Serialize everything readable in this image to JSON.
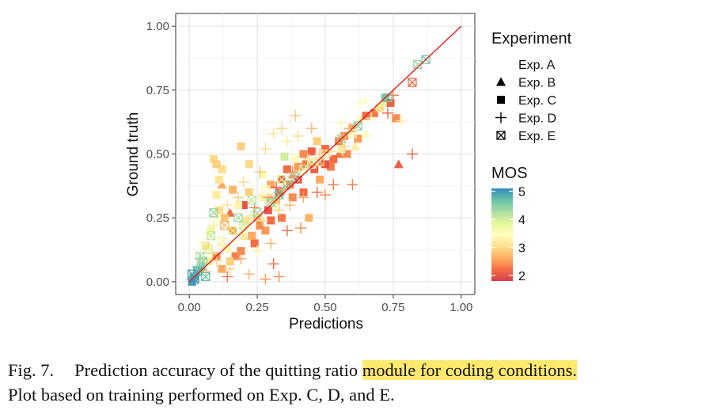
{
  "chart_data": {
    "type": "scatter",
    "xlabel": "Predictions",
    "ylabel": "Ground truth",
    "xlim": [
      -0.05,
      1.05
    ],
    "ylim": [
      -0.05,
      1.05
    ],
    "x_ticks": [
      "0.00",
      "0.25",
      "0.50",
      "0.75",
      "1.00"
    ],
    "y_ticks": [
      "0.00",
      "0.25",
      "0.50",
      "0.75",
      "1.00"
    ],
    "tick_values": [
      0,
      0.25,
      0.5,
      0.75,
      1
    ],
    "grid": true,
    "reference_line": {
      "from": [
        0,
        0
      ],
      "to": [
        1,
        1
      ],
      "color": "#e41a1c"
    },
    "legend_shape_title": "Experiment",
    "legend_shape_items": [
      {
        "label": "Exp. A",
        "shape": "none"
      },
      {
        "label": "Exp. B",
        "shape": "triangle"
      },
      {
        "label": "Exp. C",
        "shape": "square"
      },
      {
        "label": "Exp. D",
        "shape": "plus"
      },
      {
        "label": "Exp. E",
        "shape": "square-x"
      }
    ],
    "legend_color_title": "MOS",
    "legend_color_ticks": [
      "5",
      "4",
      "3",
      "2"
    ],
    "legend_color_tick_values": [
      5,
      4,
      3,
      2
    ],
    "colorbar_range": [
      1.8,
      5.1
    ],
    "colorbar_colors": [
      "#d53e4f",
      "#f46d43",
      "#fdae61",
      "#fee08b",
      "#ffffbf",
      "#e6f598",
      "#abdda4",
      "#66c2a5",
      "#3288bd"
    ],
    "series": [
      {
        "name": "Exp. B",
        "shape": "triangle",
        "points": [
          [
            0.77,
            0.46,
            2.1
          ],
          [
            0.61,
            0.53,
            3.2
          ],
          [
            0.55,
            0.5,
            2.3
          ],
          [
            0.49,
            0.47,
            2.2
          ],
          [
            0.12,
            0.38,
            2.6
          ],
          [
            0.15,
            0.27,
            2.2
          ],
          [
            0.3,
            0.33,
            2.9
          ],
          [
            0.45,
            0.46,
            2.5
          ],
          [
            0.71,
            0.7,
            3.8
          ],
          [
            0.65,
            0.58,
            3.5
          ],
          [
            0.05,
            0.06,
            4.6
          ],
          [
            0.2,
            0.18,
            3.1
          ],
          [
            0.38,
            0.42,
            2.4
          ]
        ]
      },
      {
        "name": "Exp. C",
        "shape": "square",
        "points": [
          [
            0.19,
            0.53,
            2.9
          ],
          [
            0.09,
            0.48,
            3.0
          ],
          [
            0.22,
            0.46,
            3.0
          ],
          [
            0.42,
            0.5,
            2.4
          ],
          [
            0.4,
            0.45,
            2.5
          ],
          [
            0.45,
            0.51,
            2.1
          ],
          [
            0.5,
            0.52,
            2.2
          ],
          [
            0.55,
            0.55,
            2.3
          ],
          [
            0.6,
            0.6,
            2.6
          ],
          [
            0.63,
            0.63,
            3.4
          ],
          [
            0.65,
            0.65,
            2.2
          ],
          [
            0.72,
            0.72,
            4.6
          ],
          [
            0.74,
            0.7,
            2.1
          ],
          [
            0.76,
            0.64,
            2.4
          ],
          [
            0.36,
            0.44,
            2.2
          ],
          [
            0.3,
            0.38,
            2.6
          ],
          [
            0.27,
            0.33,
            3.3
          ],
          [
            0.33,
            0.35,
            2.1
          ],
          [
            0.31,
            0.3,
            3.5
          ],
          [
            0.25,
            0.25,
            2.8
          ],
          [
            0.2,
            0.3,
            2.0
          ],
          [
            0.16,
            0.2,
            2.5
          ],
          [
            0.14,
            0.13,
            3.6
          ],
          [
            0.1,
            0.1,
            2.4
          ],
          [
            0.07,
            0.08,
            3.2
          ],
          [
            0.04,
            0.05,
            4.7
          ],
          [
            0.02,
            0.02,
            4.9
          ],
          [
            0.01,
            0.0,
            5.0
          ],
          [
            0.12,
            0.05,
            2.6
          ],
          [
            0.17,
            0.1,
            2.3
          ],
          [
            0.24,
            0.15,
            2.2
          ],
          [
            0.28,
            0.2,
            2.5
          ],
          [
            0.34,
            0.25,
            2.3
          ],
          [
            0.38,
            0.33,
            2.4
          ],
          [
            0.42,
            0.35,
            2.2
          ],
          [
            0.44,
            0.25,
            2.7
          ],
          [
            0.48,
            0.4,
            2.6
          ],
          [
            0.52,
            0.45,
            2.3
          ],
          [
            0.58,
            0.5,
            2.4
          ],
          [
            0.47,
            0.55,
            2.9
          ],
          [
            0.39,
            0.48,
            3.4
          ],
          [
            0.35,
            0.49,
            4.0
          ],
          [
            0.27,
            0.42,
            3.6
          ],
          [
            0.22,
            0.35,
            2.9
          ],
          [
            0.18,
            0.3,
            3.3
          ],
          [
            0.13,
            0.25,
            2.8
          ],
          [
            0.08,
            0.2,
            3.8
          ],
          [
            0.29,
            0.28,
            2.0
          ],
          [
            0.26,
            0.22,
            2.4
          ],
          [
            0.32,
            0.32,
            2.8
          ],
          [
            0.37,
            0.38,
            2.3
          ],
          [
            0.4,
            0.4,
            2.0
          ],
          [
            0.46,
            0.44,
            2.1
          ],
          [
            0.53,
            0.48,
            2.2
          ],
          [
            0.56,
            0.52,
            3.2
          ],
          [
            0.62,
            0.56,
            2.5
          ],
          [
            0.06,
            0.14,
            2.9
          ],
          [
            0.21,
            0.24,
            3.1
          ],
          [
            0.23,
            0.18,
            2.6
          ],
          [
            0.3,
            0.24,
            2.2
          ],
          [
            0.15,
            0.08,
            2.9
          ],
          [
            0.19,
            0.12,
            2.4
          ],
          [
            0.11,
            0.28,
            3.0
          ],
          [
            0.1,
            0.34,
            3.2
          ],
          [
            0.11,
            0.4,
            3.1
          ],
          [
            0.12,
            0.44,
            3.0
          ],
          [
            0.1,
            0.46,
            2.9
          ],
          [
            0.16,
            0.36,
            2.7
          ],
          [
            0.34,
            0.4,
            2.1
          ],
          [
            0.43,
            0.46,
            2.3
          ],
          [
            0.5,
            0.46,
            2.0
          ],
          [
            0.57,
            0.57,
            2.4
          ],
          [
            0.68,
            0.66,
            2.3
          ],
          [
            0.7,
            0.68,
            3.0
          ]
        ]
      },
      {
        "name": "Exp. D",
        "shape": "plus",
        "points": [
          [
            0.82,
            0.5,
            2.1
          ],
          [
            0.6,
            0.38,
            2.3
          ],
          [
            0.78,
            0.63,
            3.2
          ],
          [
            0.73,
            0.66,
            2.2
          ],
          [
            0.63,
            0.7,
            3.4
          ],
          [
            0.65,
            0.71,
            3.6
          ],
          [
            0.39,
            0.65,
            2.8
          ],
          [
            0.34,
            0.6,
            2.9
          ],
          [
            0.31,
            0.58,
            3.1
          ],
          [
            0.28,
            0.52,
            3.0
          ],
          [
            0.26,
            0.43,
            2.8
          ],
          [
            0.2,
            0.39,
            3.0
          ],
          [
            0.18,
            0.33,
            2.9
          ],
          [
            0.14,
            0.3,
            3.1
          ],
          [
            0.09,
            0.22,
            3.2
          ],
          [
            0.07,
            0.19,
            3.4
          ],
          [
            0.05,
            0.15,
            3.6
          ],
          [
            0.03,
            0.06,
            4.4
          ],
          [
            0.02,
            0.03,
            4.9
          ],
          [
            0.1,
            0.08,
            3.0
          ],
          [
            0.15,
            0.05,
            2.9
          ],
          [
            0.19,
            0.09,
            2.6
          ],
          [
            0.22,
            0.03,
            2.7
          ],
          [
            0.28,
            0.01,
            2.5
          ],
          [
            0.33,
            0.02,
            2.4
          ],
          [
            0.31,
            0.07,
            2.2
          ],
          [
            0.25,
            0.12,
            3.3
          ],
          [
            0.3,
            0.15,
            2.7
          ],
          [
            0.36,
            0.2,
            2.2
          ],
          [
            0.41,
            0.21,
            2.4
          ],
          [
            0.47,
            0.35,
            2.1
          ],
          [
            0.53,
            0.38,
            2.3
          ],
          [
            0.5,
            0.34,
            2.4
          ],
          [
            0.42,
            0.33,
            2.6
          ],
          [
            0.37,
            0.3,
            2.7
          ],
          [
            0.33,
            0.28,
            2.9
          ],
          [
            0.27,
            0.24,
            3.0
          ],
          [
            0.21,
            0.21,
            3.3
          ],
          [
            0.17,
            0.16,
            3.5
          ],
          [
            0.12,
            0.14,
            3.3
          ],
          [
            0.44,
            0.48,
            3.0
          ],
          [
            0.48,
            0.5,
            2.8
          ],
          [
            0.52,
            0.51,
            3.1
          ],
          [
            0.57,
            0.53,
            2.9
          ],
          [
            0.59,
            0.6,
            2.6
          ],
          [
            0.67,
            0.64,
            3.5
          ],
          [
            0.7,
            0.69,
            3.8
          ],
          [
            0.75,
            0.73,
            2.3
          ],
          [
            0.38,
            0.43,
            2.4
          ],
          [
            0.32,
            0.37,
            2.1
          ],
          [
            0.24,
            0.29,
            2.4
          ],
          [
            0.29,
            0.33,
            2.5
          ],
          [
            0.35,
            0.36,
            2.6
          ],
          [
            0.06,
            0.04,
            2.8
          ],
          [
            0.14,
            0.02,
            2.3
          ],
          [
            0.4,
            0.57,
            3.0
          ],
          [
            0.36,
            0.55,
            3.2
          ],
          [
            0.45,
            0.6,
            2.7
          ],
          [
            0.56,
            0.62,
            3.6
          ],
          [
            0.08,
            0.11,
            3.9
          ],
          [
            0.04,
            0.09,
            4.5
          ],
          [
            0.01,
            0.01,
            4.8
          ],
          [
            0.23,
            0.26,
            3.9
          ],
          [
            0.19,
            0.19,
            3.7
          ]
        ]
      },
      {
        "name": "Exp. E",
        "shape": "square-x",
        "points": [
          [
            0.87,
            0.87,
            4.6
          ],
          [
            0.84,
            0.85,
            4.4
          ],
          [
            0.82,
            0.78,
            2.2
          ],
          [
            0.73,
            0.72,
            4.6
          ],
          [
            0.62,
            0.61,
            4.5
          ],
          [
            0.56,
            0.56,
            4.2
          ],
          [
            0.45,
            0.46,
            3.6
          ],
          [
            0.39,
            0.41,
            4.3
          ],
          [
            0.36,
            0.38,
            4.5
          ],
          [
            0.33,
            0.34,
            4.6
          ],
          [
            0.3,
            0.31,
            4.4
          ],
          [
            0.25,
            0.27,
            4.3
          ],
          [
            0.2,
            0.22,
            4.0
          ],
          [
            0.16,
            0.2,
            3.8
          ],
          [
            0.1,
            0.24,
            3.5
          ],
          [
            0.08,
            0.18,
            4.1
          ],
          [
            0.07,
            0.13,
            3.9
          ],
          [
            0.05,
            0.08,
            4.5
          ],
          [
            0.03,
            0.04,
            4.8
          ],
          [
            0.02,
            0.01,
            5.0
          ],
          [
            0.01,
            0.03,
            4.9
          ],
          [
            0.04,
            0.1,
            4.2
          ],
          [
            0.12,
            0.16,
            3.7
          ],
          [
            0.18,
            0.25,
            4.3
          ],
          [
            0.23,
            0.32,
            4.1
          ],
          [
            0.28,
            0.36,
            3.4
          ],
          [
            0.34,
            0.4,
            3.9
          ],
          [
            0.42,
            0.44,
            4.0
          ],
          [
            0.5,
            0.5,
            3.2
          ],
          [
            0.48,
            0.47,
            2.9
          ],
          [
            0.6,
            0.58,
            3.3
          ],
          [
            0.13,
            0.22,
            2.7
          ],
          [
            0.09,
            0.27,
            4.4
          ],
          [
            0.06,
            0.02,
            4.7
          ]
        ]
      }
    ]
  },
  "caption": {
    "label": "Fig. 7.",
    "text_before": "Prediction accuracy of the quitting ratio ",
    "text_highlight": "module for coding conditions.",
    "text_line2": "Plot based on training performed on Exp. C, D, and E."
  }
}
